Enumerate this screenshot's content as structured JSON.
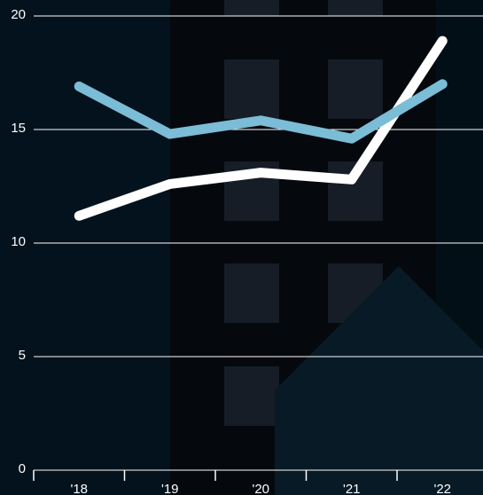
{
  "chart_data": {
    "type": "line",
    "categories": [
      "'18",
      "'19",
      "'20",
      "'21",
      "'22"
    ],
    "series": [
      {
        "color": "#ffffff",
        "values": [
          11.2,
          12.6,
          13.1,
          12.8,
          18.9
        ]
      },
      {
        "color": "#7bbcd6",
        "values": [
          16.9,
          14.8,
          15.4,
          14.6,
          17.0
        ]
      }
    ],
    "ylim": [
      0,
      20
    ],
    "yticks": [
      0,
      5,
      10,
      15,
      20
    ],
    "grid": true
  }
}
